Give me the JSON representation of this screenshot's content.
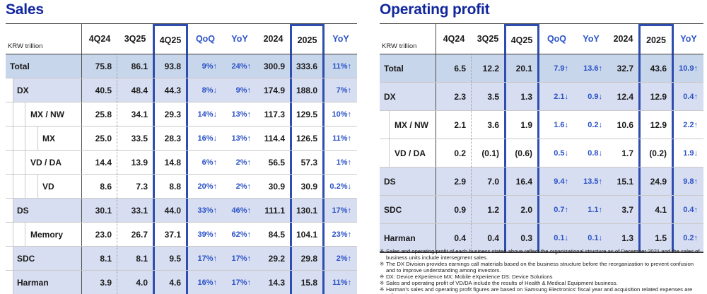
{
  "colors": {
    "title": "#12279e",
    "accent_blue": "#2b53c6",
    "box_border": "#2e4daf",
    "shade_total_row": "#c8d6eb",
    "shade_group_row": "#d8def1",
    "grid_light": "#c9c9c9",
    "line_dark": "#3b3b3b",
    "text": "#1a1a1a"
  },
  "footnote_marker": "※",
  "tables": [
    {
      "title": "Sales",
      "unit_label": "KRW trillion",
      "columns": [
        {
          "label": "4Q24",
          "kind": "num"
        },
        {
          "label": "3Q25",
          "kind": "num"
        },
        {
          "label": "4Q25",
          "kind": "num",
          "boxed": true
        },
        {
          "label": "QoQ",
          "kind": "chg"
        },
        {
          "label": "YoY",
          "kind": "chg"
        },
        {
          "label": "2024",
          "kind": "num"
        },
        {
          "label": "2025",
          "kind": "num",
          "boxed": true
        },
        {
          "label": "YoY",
          "kind": "chg"
        }
      ],
      "rows": [
        {
          "label": "Total",
          "level": 0,
          "shade": "dark",
          "cells": [
            "75.8",
            "86.1",
            "93.8",
            "9%↑",
            "24%↑",
            "300.9",
            "333.6",
            "11%↑"
          ]
        },
        {
          "label": "DX",
          "level": 1,
          "shade": "light",
          "cells": [
            "40.5",
            "48.4",
            "44.3",
            "8%↓",
            "9%↑",
            "174.9",
            "188.0",
            "7%↑"
          ]
        },
        {
          "label": "MX / NW",
          "level": 2,
          "shade": "none",
          "cells": [
            "25.8",
            "34.1",
            "29.3",
            "14%↓",
            "13%↑",
            "117.3",
            "129.5",
            "10%↑"
          ]
        },
        {
          "label": "MX",
          "level": 3,
          "shade": "none",
          "cells": [
            "25.0",
            "33.5",
            "28.3",
            "16%↓",
            "13%↑",
            "114.4",
            "126.5",
            "11%↑"
          ]
        },
        {
          "label": "VD / DA",
          "level": 2,
          "shade": "none",
          "cells": [
            "14.4",
            "13.9",
            "14.8",
            "6%↑",
            "2%↑",
            "56.5",
            "57.3",
            "1%↑"
          ]
        },
        {
          "label": "VD",
          "level": 3,
          "shade": "none",
          "cells": [
            "8.6",
            "7.3",
            "8.8",
            "20%↑",
            "2%↑",
            "30.9",
            "30.9",
            "0.2%↓"
          ]
        },
        {
          "label": "DS",
          "level": 1,
          "shade": "light",
          "cells": [
            "30.1",
            "33.1",
            "44.0",
            "33%↑",
            "46%↑",
            "111.1",
            "130.1",
            "17%↑"
          ]
        },
        {
          "label": "Memory",
          "level": 2,
          "shade": "none",
          "cells": [
            "23.0",
            "26.7",
            "37.1",
            "39%↑",
            "62%↑",
            "84.5",
            "104.1",
            "23%↑"
          ]
        },
        {
          "label": "SDC",
          "level": 1,
          "shade": "light",
          "cells": [
            "8.1",
            "8.1",
            "9.5",
            "17%↑",
            "17%↑",
            "29.2",
            "29.8",
            "2%↑"
          ]
        },
        {
          "label": "Harman",
          "level": 1,
          "shade": "light",
          "cells": [
            "3.9",
            "4.0",
            "4.6",
            "16%↑",
            "17%↑",
            "14.3",
            "15.8",
            "11%↑"
          ]
        }
      ]
    },
    {
      "title": "Operating profit",
      "unit_label": "KRW trillion",
      "columns": [
        {
          "label": "4Q24",
          "kind": "num"
        },
        {
          "label": "3Q25",
          "kind": "num"
        },
        {
          "label": "4Q25",
          "kind": "num",
          "boxed": true
        },
        {
          "label": "QoQ",
          "kind": "chg"
        },
        {
          "label": "YoY",
          "kind": "chg"
        },
        {
          "label": "2024",
          "kind": "num"
        },
        {
          "label": "2025",
          "kind": "num",
          "boxed": true
        },
        {
          "label": "YoY",
          "kind": "chg"
        }
      ],
      "rows": [
        {
          "label": "Total",
          "level": 0,
          "shade": "dark",
          "cells": [
            "6.5",
            "12.2",
            "20.1",
            "7.9↑",
            "13.6↑",
            "32.7",
            "43.6",
            "10.9↑"
          ]
        },
        {
          "label": "DX",
          "level": 0,
          "shade": "light",
          "cells": [
            "2.3",
            "3.5",
            "1.3",
            "2.1↓",
            "0.9↓",
            "12.4",
            "12.9",
            "0.4↑"
          ]
        },
        {
          "label": "MX / NW",
          "level": 1,
          "shade": "none",
          "cells": [
            "2.1",
            "3.6",
            "1.9",
            "1.6↓",
            "0.2↓",
            "10.6",
            "12.9",
            "2.2↑"
          ]
        },
        {
          "label": "VD / DA",
          "level": 1,
          "shade": "none",
          "cells": [
            "0.2",
            "(0.1)",
            "(0.6)",
            "0.5↓",
            "0.8↓",
            "1.7",
            "(0.2)",
            "1.9↓"
          ]
        },
        {
          "label": "DS",
          "level": 0,
          "shade": "light",
          "cells": [
            "2.9",
            "7.0",
            "16.4",
            "9.4↑",
            "13.5↑",
            "15.1",
            "24.9",
            "9.8↑"
          ]
        },
        {
          "label": "SDC",
          "level": 0,
          "shade": "light",
          "cells": [
            "0.9",
            "1.2",
            "2.0",
            "0.7↑",
            "1.1↑",
            "3.7",
            "4.1",
            "0.4↑"
          ]
        },
        {
          "label": "Harman",
          "level": 0,
          "shade": "light",
          "cells": [
            "0.4",
            "0.4",
            "0.3",
            "0.1↓",
            "0.1↓",
            "1.3",
            "1.5",
            "0.2↑"
          ]
        }
      ]
    }
  ],
  "footnotes": [
    "Sales and operating profit of each business stated above reflect the organizational structure as of December 2021 and the sales of business units include intersegment sales.",
    "The DX Division provides earnings call materials based on the business structure before the reorganization to prevent confusion and to improve understanding among investors.",
    "DX: Device eXperience MX: Mobile eXperience DS: Device Solutions",
    "Sales and operating profit of VD/DA include the results of Health & Medical Equipment business.",
    "Harman's sales and operating profit figures are based on Samsung Electronics' fiscal year and acquisition related expenses are reflected."
  ]
}
